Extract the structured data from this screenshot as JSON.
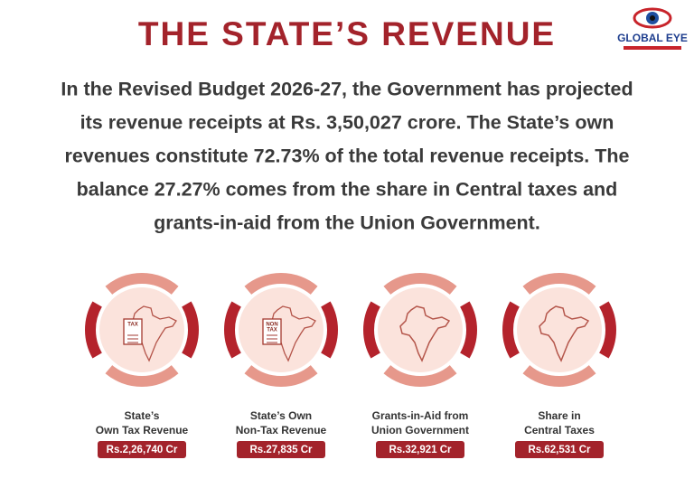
{
  "header": {
    "title": "THE STATE’S REVENUE",
    "logo": "GLOBAL EYE"
  },
  "paragraph": [
    "In the Revised Budget 2026-27, the Government has projected",
    "its revenue receipts at Rs. 3,50,027 crore. The State’s own",
    "revenues constitute 72.73% of the total revenue receipts. The",
    "balance 27.27% comes from the share in Central taxes and",
    "grants-in-aid from the Union Government."
  ],
  "items": [
    {
      "icon_text": [
        "TAX"
      ],
      "label": [
        "State’s",
        "Own Tax Revenue"
      ],
      "value": "Rs.2,26,740 Cr"
    },
    {
      "icon_text": [
        "NON",
        "TAX"
      ],
      "label": [
        "State’s Own",
        "Non-Tax Revenue"
      ],
      "value": "Rs.27,835 Cr"
    },
    {
      "label": [
        "Grants-in-Aid from",
        "Union Government"
      ],
      "value": "Rs.32,921 Cr"
    },
    {
      "label": [
        "Share in",
        "Central Taxes"
      ],
      "value": "Rs.62,531 Cr"
    }
  ]
}
